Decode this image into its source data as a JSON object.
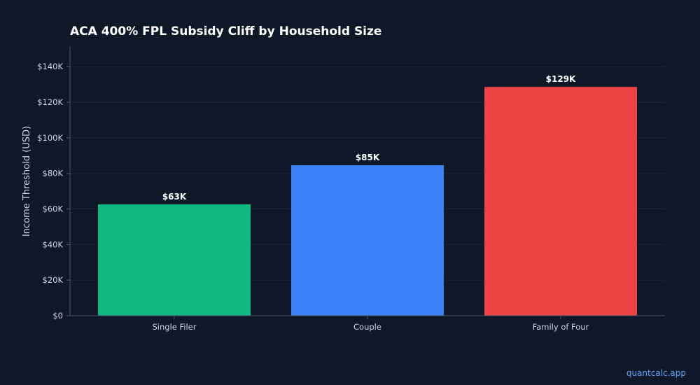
{
  "watermark": "quantcalc.app",
  "chart_data": {
    "type": "bar",
    "title": "ACA 400% FPL Subsidy Cliff by Household Size",
    "xlabel": "",
    "ylabel": "Income Threshold (USD)",
    "categories": [
      "Single Filer",
      "Couple",
      "Family of Four"
    ],
    "values": [
      62600,
      84600,
      128600
    ],
    "value_labels": [
      "$63K",
      "$85K",
      "$129K"
    ],
    "colors": [
      "#10b981",
      "#3b82f6",
      "#ef4444"
    ],
    "ylim": [
      0,
      151500
    ],
    "yticks": [
      0,
      20000,
      40000,
      60000,
      80000,
      100000,
      120000,
      140000
    ],
    "ytick_labels": [
      "$0",
      "$20K",
      "$40K",
      "$60K",
      "$80K",
      "$100K",
      "$120K",
      "$140K"
    ],
    "grid": true,
    "legend": "none",
    "background": "#0f1829",
    "grid_color": "#1c2539",
    "axis_color": "#4b5563"
  }
}
